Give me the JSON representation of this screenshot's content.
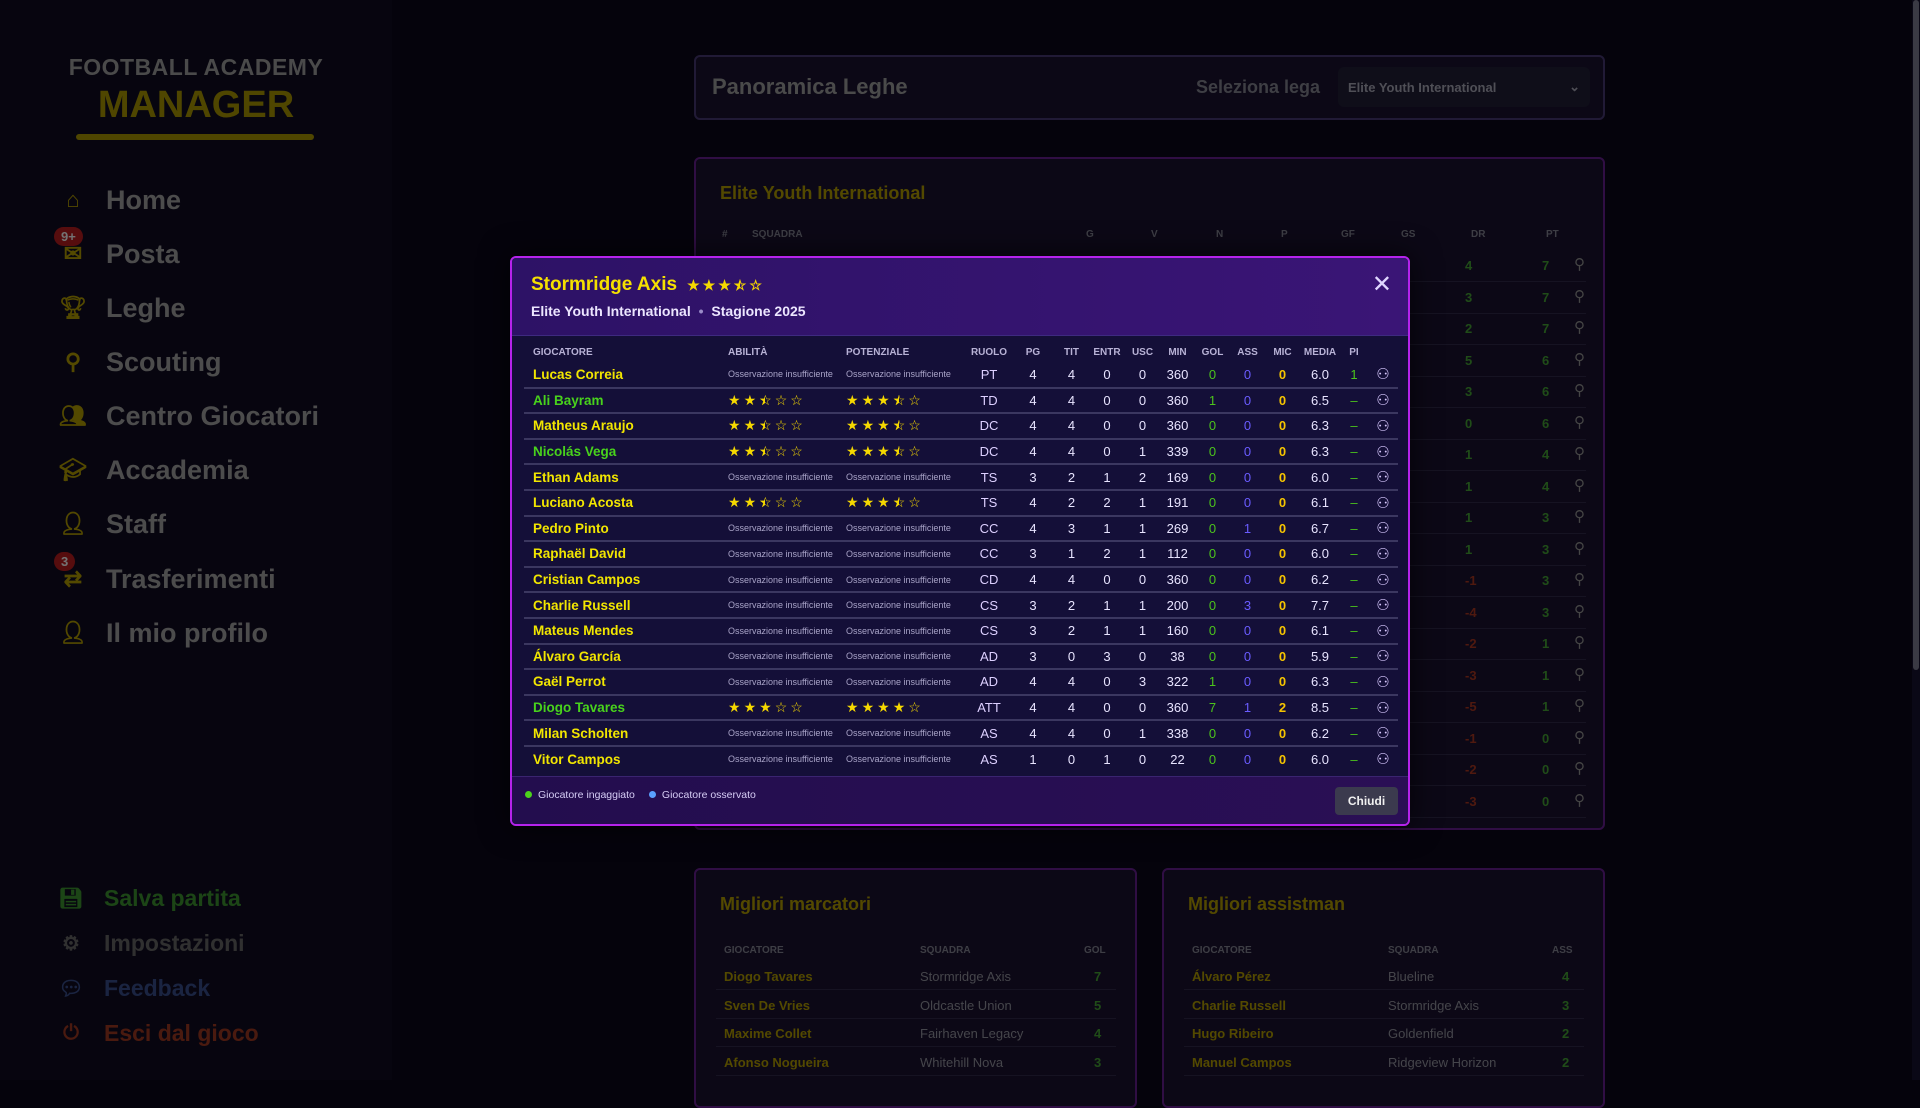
{
  "app": {
    "logo_top": "FOOTBALL ACADEMY",
    "logo_bottom": "MANAGER"
  },
  "sidebar": {
    "items": [
      {
        "label": "Home",
        "icon": "home-icon"
      },
      {
        "label": "Posta",
        "icon": "mail-icon",
        "badge": "9+"
      },
      {
        "label": "Leghe",
        "icon": "trophy-icon"
      },
      {
        "label": "Scouting",
        "icon": "search-icon"
      },
      {
        "label": "Centro Giocatori",
        "icon": "players-icon"
      },
      {
        "label": "Accademia",
        "icon": "graduation-cap-icon"
      },
      {
        "label": "Staff",
        "icon": "staff-icon"
      },
      {
        "label": "Trasferimenti",
        "icon": "transfer-icon",
        "badge": "3"
      },
      {
        "label": "Il mio profilo",
        "icon": "user-icon"
      }
    ],
    "bottom": [
      {
        "label": "Salva partita",
        "icon": "save-icon",
        "color": "#3e9a30"
      },
      {
        "label": "Impostazioni",
        "icon": "gear-icon",
        "color": "#6a6a6a"
      },
      {
        "label": "Feedback",
        "icon": "chat-icon",
        "color": "#3a4f90"
      },
      {
        "label": "Esci dal gioco",
        "icon": "power-icon",
        "color": "#a43a22"
      }
    ]
  },
  "header": {
    "title": "Panoramica Leghe",
    "select_label": "Seleziona lega",
    "select_value": "Elite Youth International"
  },
  "league": {
    "title": "Elite Youth International",
    "columns": [
      "#",
      "SQUADRA",
      "G",
      "V",
      "N",
      "P",
      "GF",
      "GS",
      "DR",
      "PT"
    ],
    "dr": [
      4,
      3,
      2,
      5,
      3,
      0,
      1,
      1,
      1,
      1,
      -1,
      -4,
      -2,
      -3,
      -5,
      -1,
      -2,
      -3
    ],
    "pt": [
      7,
      7,
      7,
      6,
      6,
      6,
      4,
      4,
      3,
      3,
      3,
      3,
      1,
      1,
      1,
      0,
      0,
      0
    ]
  },
  "scorers": {
    "title": "Migliori marcatori",
    "columns": [
      "GIOCATORE",
      "SQUADRA",
      "GOL"
    ],
    "rows": [
      [
        "Diogo Tavares",
        "Stormridge Axis",
        "7"
      ],
      [
        "Sven De Vries",
        "Oldcastle Union",
        "5"
      ],
      [
        "Maxime Collet",
        "Fairhaven Legacy",
        "4"
      ],
      [
        "Afonso Nogueira",
        "Whitehill Nova",
        "3"
      ]
    ]
  },
  "assists": {
    "title": "Migliori assistman",
    "columns": [
      "GIOCATORE",
      "SQUADRA",
      "ASS"
    ],
    "rows": [
      [
        "Álvaro Pérez",
        "Blueline",
        "4"
      ],
      [
        "Charlie Russell",
        "Stormridge Axis",
        "3"
      ],
      [
        "Hugo Ribeiro",
        "Goldenfield",
        "2"
      ],
      [
        "Manuel Campos",
        "Ridgeview Horizon",
        "2"
      ]
    ]
  },
  "modal": {
    "team": "Stormridge Axis",
    "team_rating": 3.5,
    "league": "Elite Youth International",
    "separator": "•",
    "season": "Stagione 2025",
    "columns": [
      "GIOCATORE",
      "ABILITÀ",
      "POTENZIALE",
      "RUOLO",
      "PG",
      "TIT",
      "ENTR",
      "USC",
      "MIN",
      "GOL",
      "ASS",
      "MIC",
      "MEDIA",
      "PI"
    ],
    "insufficient": "Osservazione insufficiente",
    "players": [
      {
        "name": "Lucas Correia",
        "engaged": false,
        "ability": null,
        "potential": null,
        "role": "PT",
        "pg": 4,
        "tit": 4,
        "entr": 0,
        "usc": 0,
        "min": 360,
        "gol": 0,
        "ass": 0,
        "mic": 0,
        "media": "6.0",
        "pi": "1"
      },
      {
        "name": "Ali Bayram",
        "engaged": true,
        "ability": 2.5,
        "potential": 3.5,
        "role": "TD",
        "pg": 4,
        "tit": 4,
        "entr": 0,
        "usc": 0,
        "min": 360,
        "gol": 1,
        "ass": 0,
        "mic": 0,
        "media": "6.5",
        "pi": "–"
      },
      {
        "name": "Matheus Araujo",
        "engaged": false,
        "ability": 2.5,
        "potential": 3.5,
        "role": "DC",
        "pg": 4,
        "tit": 4,
        "entr": 0,
        "usc": 0,
        "min": 360,
        "gol": 0,
        "ass": 0,
        "mic": 0,
        "media": "6.3",
        "pi": "–"
      },
      {
        "name": "Nicolás Vega",
        "engaged": true,
        "ability": 2.5,
        "potential": 3.5,
        "role": "DC",
        "pg": 4,
        "tit": 4,
        "entr": 0,
        "usc": 1,
        "min": 339,
        "gol": 0,
        "ass": 0,
        "mic": 0,
        "media": "6.3",
        "pi": "–"
      },
      {
        "name": "Ethan Adams",
        "engaged": false,
        "ability": null,
        "potential": null,
        "role": "TS",
        "pg": 3,
        "tit": 2,
        "entr": 1,
        "usc": 2,
        "min": 169,
        "gol": 0,
        "ass": 0,
        "mic": 0,
        "media": "6.0",
        "pi": "–"
      },
      {
        "name": "Luciano Acosta",
        "engaged": false,
        "ability": 2.5,
        "potential": 3.5,
        "role": "TS",
        "pg": 4,
        "tit": 2,
        "entr": 2,
        "usc": 1,
        "min": 191,
        "gol": 0,
        "ass": 0,
        "mic": 0,
        "media": "6.1",
        "pi": "–"
      },
      {
        "name": "Pedro Pinto",
        "engaged": false,
        "ability": null,
        "potential": null,
        "role": "CC",
        "pg": 4,
        "tit": 3,
        "entr": 1,
        "usc": 1,
        "min": 269,
        "gol": 0,
        "ass": 1,
        "mic": 0,
        "media": "6.7",
        "pi": "–"
      },
      {
        "name": "Raphaël David",
        "engaged": false,
        "ability": null,
        "potential": null,
        "role": "CC",
        "pg": 3,
        "tit": 1,
        "entr": 2,
        "usc": 1,
        "min": 112,
        "gol": 0,
        "ass": 0,
        "mic": 0,
        "media": "6.0",
        "pi": "–"
      },
      {
        "name": "Cristian Campos",
        "engaged": false,
        "ability": null,
        "potential": null,
        "role": "CD",
        "pg": 4,
        "tit": 4,
        "entr": 0,
        "usc": 0,
        "min": 360,
        "gol": 0,
        "ass": 0,
        "mic": 0,
        "media": "6.2",
        "pi": "–"
      },
      {
        "name": "Charlie Russell",
        "engaged": false,
        "ability": null,
        "potential": null,
        "role": "CS",
        "pg": 3,
        "tit": 2,
        "entr": 1,
        "usc": 1,
        "min": 200,
        "gol": 0,
        "ass": 3,
        "mic": 0,
        "media": "7.7",
        "pi": "–"
      },
      {
        "name": "Mateus Mendes",
        "engaged": false,
        "ability": null,
        "potential": null,
        "role": "CS",
        "pg": 3,
        "tit": 2,
        "entr": 1,
        "usc": 1,
        "min": 160,
        "gol": 0,
        "ass": 0,
        "mic": 0,
        "media": "6.1",
        "pi": "–"
      },
      {
        "name": "Álvaro García",
        "engaged": false,
        "ability": null,
        "potential": null,
        "role": "AD",
        "pg": 3,
        "tit": 0,
        "entr": 3,
        "usc": 0,
        "min": 38,
        "gol": 0,
        "ass": 0,
        "mic": 0,
        "media": "5.9",
        "pi": "–"
      },
      {
        "name": "Gaël Perrot",
        "engaged": false,
        "ability": null,
        "potential": null,
        "role": "AD",
        "pg": 4,
        "tit": 4,
        "entr": 0,
        "usc": 3,
        "min": 322,
        "gol": 1,
        "ass": 0,
        "mic": 0,
        "media": "6.3",
        "pi": "–"
      },
      {
        "name": "Diogo Tavares",
        "engaged": true,
        "ability": 3,
        "potential": 4,
        "role": "ATT",
        "pg": 4,
        "tit": 4,
        "entr": 0,
        "usc": 0,
        "min": 360,
        "gol": 7,
        "ass": 1,
        "mic": 2,
        "media": "8.5",
        "pi": "–"
      },
      {
        "name": "Milan Scholten",
        "engaged": false,
        "ability": null,
        "potential": null,
        "role": "AS",
        "pg": 4,
        "tit": 4,
        "entr": 0,
        "usc": 1,
        "min": 338,
        "gol": 0,
        "ass": 0,
        "mic": 0,
        "media": "6.2",
        "pi": "–"
      },
      {
        "name": "Vitor Campos",
        "engaged": false,
        "ability": null,
        "potential": null,
        "role": "AS",
        "pg": 1,
        "tit": 0,
        "entr": 1,
        "usc": 0,
        "min": 22,
        "gol": 0,
        "ass": 0,
        "mic": 0,
        "media": "6.0",
        "pi": "–"
      }
    ],
    "legend": [
      {
        "label": "Giocatore ingaggiato",
        "color": "#4cd21c"
      },
      {
        "label": "Giocatore osservato",
        "color": "#5aa0ff"
      }
    ],
    "close_label": "Chiudi"
  },
  "colors": {
    "accent": "#b523ec",
    "name": "#f2e600",
    "engaged": "#48d21c"
  }
}
